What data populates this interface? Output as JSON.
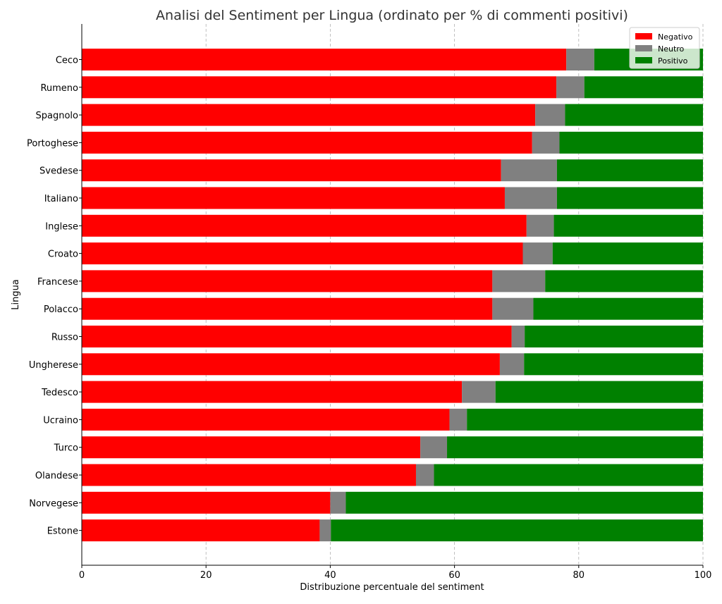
{
  "chart_data": {
    "type": "bar",
    "orientation": "horizontal",
    "stacked": true,
    "title": "Analisi del Sentiment per Lingua (ordinato per % di commenti positivi)",
    "xlabel": "Distribuzione percentuale del sentiment",
    "ylabel": "Lingua",
    "xlim": [
      0,
      100
    ],
    "xticks": [
      0,
      20,
      40,
      60,
      80,
      100
    ],
    "grid": true,
    "legend_position": "top-right",
    "categories": [
      "Ceco",
      "Rumeno",
      "Spagnolo",
      "Portoghese",
      "Svedese",
      "Italiano",
      "Inglese",
      "Croato",
      "Francese",
      "Polacco",
      "Russo",
      "Ungherese",
      "Tedesco",
      "Ucraino",
      "Turco",
      "Olandese",
      "Norvegese",
      "Estone"
    ],
    "series": [
      {
        "name": "Negativo",
        "color": "#ff0000",
        "values": [
          78.0,
          76.4,
          73.0,
          72.5,
          67.5,
          68.1,
          71.6,
          71.0,
          66.1,
          66.1,
          69.2,
          67.3,
          61.2,
          59.2,
          54.5,
          53.8,
          40.0,
          38.3
        ]
      },
      {
        "name": "Neutro",
        "color": "#808080",
        "values": [
          4.5,
          4.5,
          4.8,
          4.4,
          9.0,
          8.4,
          4.4,
          4.8,
          8.5,
          6.6,
          2.1,
          3.9,
          5.4,
          2.8,
          4.3,
          2.9,
          2.5,
          1.8
        ]
      },
      {
        "name": "Positivo",
        "color": "#008000",
        "values": [
          17.5,
          19.1,
          22.2,
          23.1,
          23.5,
          23.5,
          24.0,
          24.2,
          25.4,
          27.3,
          28.7,
          28.8,
          33.4,
          38.0,
          41.2,
          43.3,
          57.5,
          59.9
        ]
      }
    ]
  }
}
